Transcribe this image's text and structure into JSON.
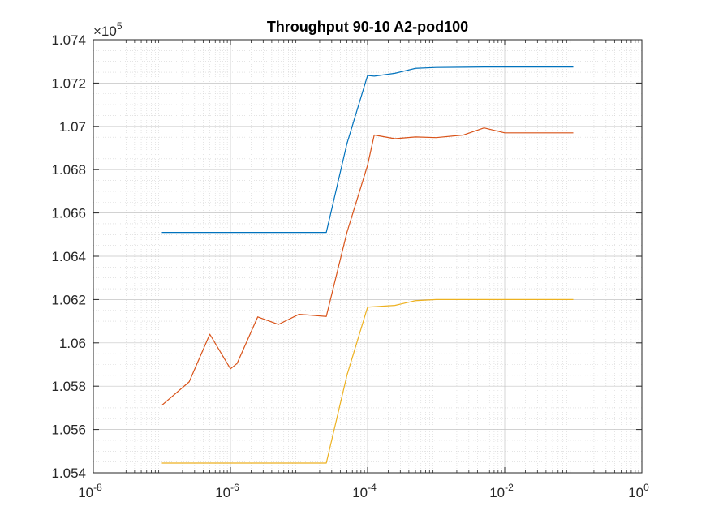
{
  "chart_data": {
    "type": "line",
    "title": "Throughput 90-10 A2-pod100",
    "xlabel": "",
    "ylabel": "",
    "x_scale": "log",
    "xlim": [
      1e-08,
      1
    ],
    "ylim": [
      105400,
      107400
    ],
    "y_multiplier_label": "×10",
    "y_multiplier_exponent": "5",
    "x_ticks": [
      {
        "base": "10",
        "exp": "-8",
        "value": 1e-08
      },
      {
        "base": "10",
        "exp": "-6",
        "value": 1e-06
      },
      {
        "base": "10",
        "exp": "-4",
        "value": 0.0001
      },
      {
        "base": "10",
        "exp": "-2",
        "value": 0.01
      },
      {
        "base": "10",
        "exp": "0",
        "value": 1
      }
    ],
    "y_ticks": [
      {
        "label": "1.054",
        "value": 105400
      },
      {
        "label": "1.056",
        "value": 105600
      },
      {
        "label": "1.058",
        "value": 105800
      },
      {
        "label": "1.06",
        "value": 106000
      },
      {
        "label": "1.062",
        "value": 106200
      },
      {
        "label": "1.064",
        "value": 106400
      },
      {
        "label": "1.066",
        "value": 106600
      },
      {
        "label": "1.068",
        "value": 106800
      },
      {
        "label": "1.07",
        "value": 107000
      },
      {
        "label": "1.072",
        "value": 107200
      },
      {
        "label": "1.074",
        "value": 107400
      }
    ],
    "grid": true,
    "minor_grid": true,
    "colors": [
      "#0072BD",
      "#D95319",
      "#EDB120"
    ],
    "series": [
      {
        "color": "#0072BD",
        "x": [
          1e-07,
          2.5e-07,
          5e-07,
          1e-06,
          2.5e-06,
          5e-06,
          1e-05,
          2.5e-05,
          5e-05,
          0.0001,
          0.000125,
          0.00025,
          0.0005,
          0.001,
          0.0025,
          0.005,
          0.01,
          0.025,
          0.05,
          0.1
        ],
        "y": [
          106510,
          106510,
          106510,
          106510,
          106510,
          106510,
          106510,
          106510,
          106920,
          107235,
          107232,
          107245,
          107268,
          107272,
          107273,
          107274,
          107274,
          107274,
          107274,
          107274
        ]
      },
      {
        "color": "#D95319",
        "x": [
          1e-07,
          2.5e-07,
          5e-07,
          1e-06,
          1.25e-06,
          2.5e-06,
          5e-06,
          1e-05,
          2.5e-05,
          5e-05,
          0.0001,
          0.000125,
          0.00025,
          0.0005,
          0.001,
          0.0025,
          0.005,
          0.01,
          0.025,
          0.05,
          0.1
        ],
        "y": [
          105712,
          105820,
          106040,
          105880,
          105905,
          106120,
          106085,
          106132,
          106122,
          106510,
          106820,
          106960,
          106943,
          106951,
          106948,
          106960,
          106993,
          106970,
          106970,
          106970,
          106970
        ]
      },
      {
        "color": "#EDB120",
        "x": [
          1e-07,
          2.5e-07,
          5e-07,
          1e-06,
          2.5e-06,
          5e-06,
          1e-05,
          2.5e-05,
          5e-05,
          0.0001,
          0.00025,
          0.0005,
          0.001,
          0.0025,
          0.005,
          0.01,
          0.025,
          0.05,
          0.1
        ],
        "y": [
          105445,
          105445,
          105445,
          105445,
          105445,
          105445,
          105445,
          105445,
          105850,
          106165,
          106173,
          106195,
          106200,
          106200,
          106200,
          106200,
          106200,
          106200,
          106200
        ]
      }
    ]
  }
}
